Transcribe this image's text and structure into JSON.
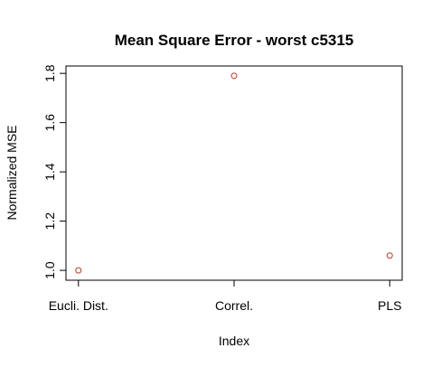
{
  "chart_data": {
    "type": "scatter",
    "title": "Mean Square Error - worst c5315",
    "xlabel": "Index",
    "ylabel": "Normalized MSE",
    "categories": [
      "Eucli. Dist.",
      "Correl.",
      "PLS"
    ],
    "x": [
      1,
      2,
      3
    ],
    "values": [
      1.0,
      1.79,
      1.06
    ],
    "ylim": [
      0.96,
      1.83
    ],
    "xlim": [
      0.92,
      3.08
    ],
    "yticks": [
      1.0,
      1.2,
      1.4,
      1.6,
      1.8
    ],
    "ytick_labels": [
      "1.0",
      "1.2",
      "1.4",
      "1.6",
      "1.8"
    ],
    "grid": false,
    "legend": "none",
    "colors": {
      "point": "#c0392b",
      "axis": "#000000"
    }
  }
}
